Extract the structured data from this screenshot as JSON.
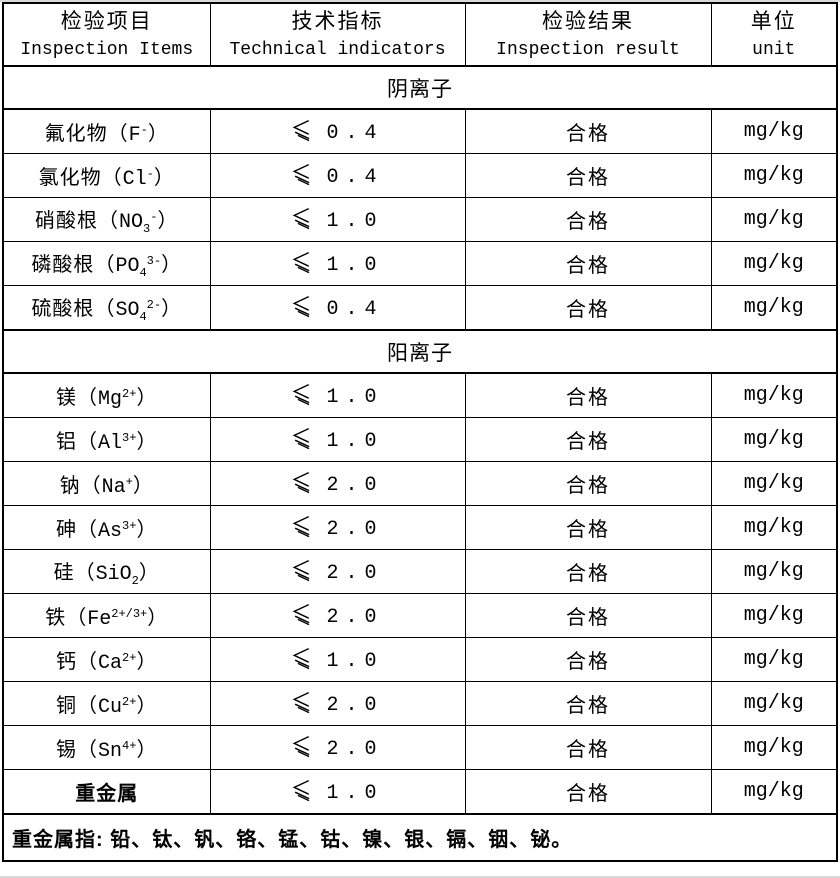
{
  "header": {
    "columns": [
      {
        "cn": "检验项目",
        "en": "Inspection Items"
      },
      {
        "cn": "技术指标",
        "en": "Technical indicators"
      },
      {
        "cn": "检验结果",
        "en": "Inspection result"
      },
      {
        "cn": "单位",
        "en": "unit"
      }
    ]
  },
  "punct": {
    "open": "（",
    "close": "）"
  },
  "comparator": "≤",
  "sections": [
    {
      "title": "阴离子",
      "rows": [
        {
          "name": "氟化物",
          "base": "F",
          "sub": "",
          "sup": "-",
          "limit": "0.4",
          "result": "合格",
          "unit": "mg/kg",
          "bold": false
        },
        {
          "name": "氯化物",
          "base": "Cl",
          "sub": "",
          "sup": "-",
          "limit": "0.4",
          "result": "合格",
          "unit": "mg/kg",
          "bold": false
        },
        {
          "name": "硝酸根",
          "base": "NO",
          "sub": "3",
          "sup": "-",
          "limit": "1.0",
          "result": "合格",
          "unit": "mg/kg",
          "bold": false
        },
        {
          "name": "磷酸根",
          "base": "PO",
          "sub": "4",
          "sup": "3-",
          "limit": "1.0",
          "result": "合格",
          "unit": "mg/kg",
          "bold": false
        },
        {
          "name": "硫酸根",
          "base": "SO",
          "sub": "4",
          "sup": "2-",
          "limit": "0.4",
          "result": "合格",
          "unit": "mg/kg",
          "bold": false
        }
      ]
    },
    {
      "title": "阳离子",
      "rows": [
        {
          "name": "镁",
          "base": "Mg",
          "sub": "",
          "sup": "2+",
          "limit": "1.0",
          "result": "合格",
          "unit": "mg/kg",
          "bold": false
        },
        {
          "name": "铝",
          "base": "Al",
          "sub": "",
          "sup": "3+",
          "limit": "1.0",
          "result": "合格",
          "unit": "mg/kg",
          "bold": false
        },
        {
          "name": "钠",
          "base": "Na",
          "sub": "",
          "sup": "+",
          "limit": "2.0",
          "result": "合格",
          "unit": "mg/kg",
          "bold": false
        },
        {
          "name": "砷",
          "base": "As",
          "sub": "",
          "sup": "3+",
          "limit": "2.0",
          "result": "合格",
          "unit": "mg/kg",
          "bold": false
        },
        {
          "name": "硅",
          "base": "SiO",
          "sub": "2",
          "sup": "",
          "limit": "2.0",
          "result": "合格",
          "unit": "mg/kg",
          "bold": false
        },
        {
          "name": "铁",
          "base": "Fe",
          "sub": "",
          "sup": "2+/3+",
          "limit": "2.0",
          "result": "合格",
          "unit": "mg/kg",
          "bold": false
        },
        {
          "name": "钙",
          "base": "Ca",
          "sub": "",
          "sup": "2+",
          "limit": "1.0",
          "result": "合格",
          "unit": "mg/kg",
          "bold": false
        },
        {
          "name": "铜",
          "base": "Cu",
          "sub": "",
          "sup": "2+",
          "limit": "2.0",
          "result": "合格",
          "unit": "mg/kg",
          "bold": false
        },
        {
          "name": "锡",
          "base": "Sn",
          "sub": "",
          "sup": "4+",
          "limit": "2.0",
          "result": "合格",
          "unit": "mg/kg",
          "bold": false
        },
        {
          "name": "重金属",
          "base": "",
          "sub": "",
          "sup": "",
          "limit": "1.0",
          "result": "合格",
          "unit": "mg/kg",
          "bold": true
        }
      ]
    }
  ],
  "footer": {
    "note": "重金属指: 铅、钛、钒、铬、锰、钴、镍、银、镉、铟、铋。"
  }
}
